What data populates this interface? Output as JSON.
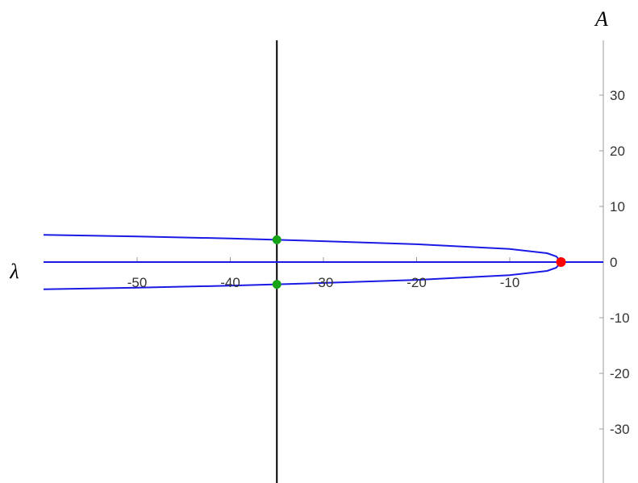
{
  "chart_data": {
    "type": "line",
    "xlabel": "λ",
    "ylabel": "A",
    "xlim": [
      -60,
      0.5
    ],
    "ylim": [
      -39,
      39
    ],
    "x_ticks": [
      -50,
      -40,
      -30,
      -20,
      -10
    ],
    "y_ticks": [
      -30,
      -20,
      -10,
      0,
      10,
      20,
      30
    ],
    "grid": false,
    "legend": "none",
    "colors": {
      "curve": "#1a1ae6",
      "vertical_line": "#000000",
      "intersection_points": "#17a317",
      "bifurcation_point": "#ff0000",
      "tick_text": "#333333",
      "axis": "#999999"
    },
    "series": [
      {
        "x": [
          -60,
          -4.5
        ],
        "y": [
          0,
          0
        ]
      },
      {
        "x": [
          -60,
          -50,
          -40,
          -35,
          -30,
          -20,
          -10,
          -6,
          -5,
          -4.5
        ],
        "y": [
          4.9,
          4.6,
          4.25,
          4.0,
          3.75,
          3.2,
          2.35,
          1.6,
          1.0,
          0
        ]
      },
      {
        "x": [
          -60,
          -50,
          -40,
          -35,
          -30,
          -20,
          -10,
          -6,
          -5,
          -4.5
        ],
        "y": [
          -4.9,
          -4.6,
          -4.25,
          -4.0,
          -3.75,
          -3.2,
          -2.35,
          -1.6,
          -1.0,
          0
        ]
      }
    ],
    "vertical_line_x": -35,
    "intersection_points": [
      {
        "x": -35,
        "y": 4.0
      },
      {
        "x": -35,
        "y": -4.0
      }
    ],
    "bifurcation_point": {
      "x": -4.5,
      "y": 0
    }
  }
}
